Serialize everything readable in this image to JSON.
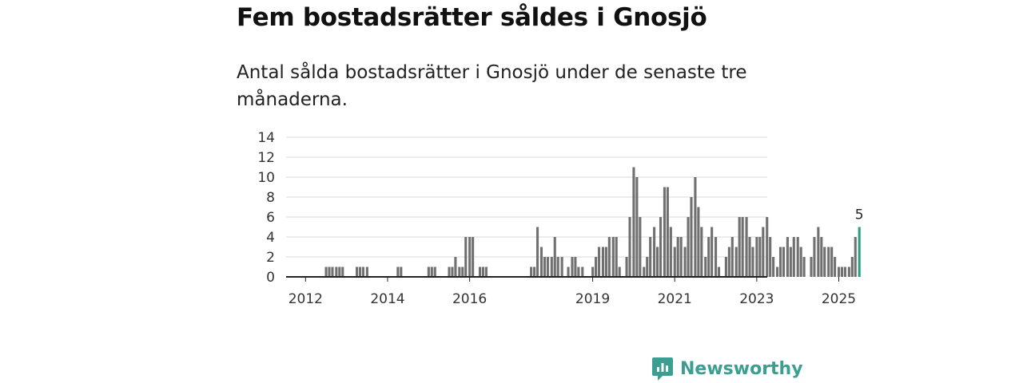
{
  "chart_data": {
    "type": "bar",
    "title": "Fem bostadsrätter såldes i Gnosjö",
    "subtitle": "Antal sålda bostadsrätter i Gnosjö under de senaste tre månaderna.",
    "ylim": [
      0,
      14
    ],
    "yticks": [
      0,
      2,
      4,
      6,
      8,
      10,
      12,
      14
    ],
    "xticks": [
      {
        "label": "2012",
        "index": 1
      },
      {
        "label": "2014",
        "index": 9
      },
      {
        "label": "2016",
        "index": 17
      },
      {
        "label": "2019",
        "index": 29
      },
      {
        "label": "2021",
        "index": 37
      },
      {
        "label": "2023",
        "index": 45
      },
      {
        "label": "2025",
        "index": 53
      }
    ],
    "categories": [
      "2011-4",
      "2012-1",
      "2012-2",
      "2012-3",
      "2012-4",
      "2013-1",
      "2013-2",
      "2013-3",
      "2013-4",
      "2014-1",
      "2014-2",
      "2014-3",
      "2014-4",
      "2015-1",
      "2015-2",
      "2015-3",
      "2015-4",
      "2016-1",
      "2016-2",
      "2016-3",
      "2016-4",
      "2017-1",
      "2017-2",
      "2017-3",
      "2017-4",
      "2018-1",
      "2018-2",
      "2018-3",
      "2018-4",
      "2019-1",
      "2019-2",
      "2019-3",
      "2019-4",
      "2020-1",
      "2020-2",
      "2020-3",
      "2020-4",
      "2021-1",
      "2021-2",
      "2021-3",
      "2021-4",
      "2022-1",
      "2022-2",
      "2022-3",
      "2022-4",
      "2023-1",
      "2023-2",
      "2023-3",
      "2023-4",
      "2024-1",
      "2024-2",
      "2024-3",
      "2024-4",
      "2025-1",
      "2025-2",
      "2025-3"
    ],
    "values": [
      [
        0,
        0,
        0
      ],
      [
        0,
        0,
        0
      ],
      [
        0,
        0,
        0
      ],
      [
        1,
        1,
        1
      ],
      [
        1,
        1,
        1
      ],
      [
        0,
        0,
        0
      ],
      [
        1,
        1,
        1
      ],
      [
        1,
        0,
        0
      ],
      [
        0,
        0,
        0
      ],
      [
        0,
        0,
        0
      ],
      [
        1,
        1,
        0
      ],
      [
        0,
        0,
        0
      ],
      [
        0,
        0,
        0
      ],
      [
        1,
        1,
        1
      ],
      [
        0,
        0,
        0
      ],
      [
        1,
        1,
        2
      ],
      [
        1,
        1,
        4
      ],
      [
        4,
        4,
        0
      ],
      [
        1,
        1,
        1
      ],
      [
        0,
        0,
        0
      ],
      [
        0,
        0,
        0
      ],
      [
        0,
        0,
        0
      ],
      [
        0,
        0,
        0
      ],
      [
        1,
        1,
        5
      ],
      [
        3,
        2,
        2
      ],
      [
        2,
        4,
        2
      ],
      [
        2,
        0,
        1
      ],
      [
        2,
        2,
        1
      ],
      [
        1,
        0,
        0
      ],
      [
        1,
        2,
        3
      ],
      [
        3,
        3,
        4
      ],
      [
        4,
        4,
        1
      ],
      [
        0,
        2,
        6
      ],
      [
        11,
        10,
        6
      ],
      [
        1,
        2,
        4
      ],
      [
        5,
        3,
        6
      ],
      [
        9,
        9,
        5
      ],
      [
        3,
        4,
        4
      ],
      [
        3,
        6,
        8
      ],
      [
        10,
        7,
        5
      ],
      [
        2,
        4,
        5
      ],
      [
        4,
        1,
        0
      ],
      [
        2,
        3,
        4
      ],
      [
        3,
        6,
        6
      ],
      [
        6,
        4,
        3
      ],
      [
        4,
        4,
        5
      ],
      [
        6,
        4,
        2
      ],
      [
        1,
        3,
        3
      ],
      [
        4,
        3,
        4
      ],
      [
        4,
        3,
        2
      ],
      [
        0,
        2,
        4
      ],
      [
        5,
        4,
        3
      ],
      [
        3,
        3,
        2
      ],
      [
        1,
        1,
        1
      ],
      [
        1,
        2,
        4
      ],
      [
        5,
        0,
        0
      ]
    ],
    "series_color": "#707070",
    "highlight_color": "#2a9d8f",
    "highlight_label": "5"
  },
  "logo": {
    "name": "Newsworthy",
    "color": "#3a9e91"
  }
}
